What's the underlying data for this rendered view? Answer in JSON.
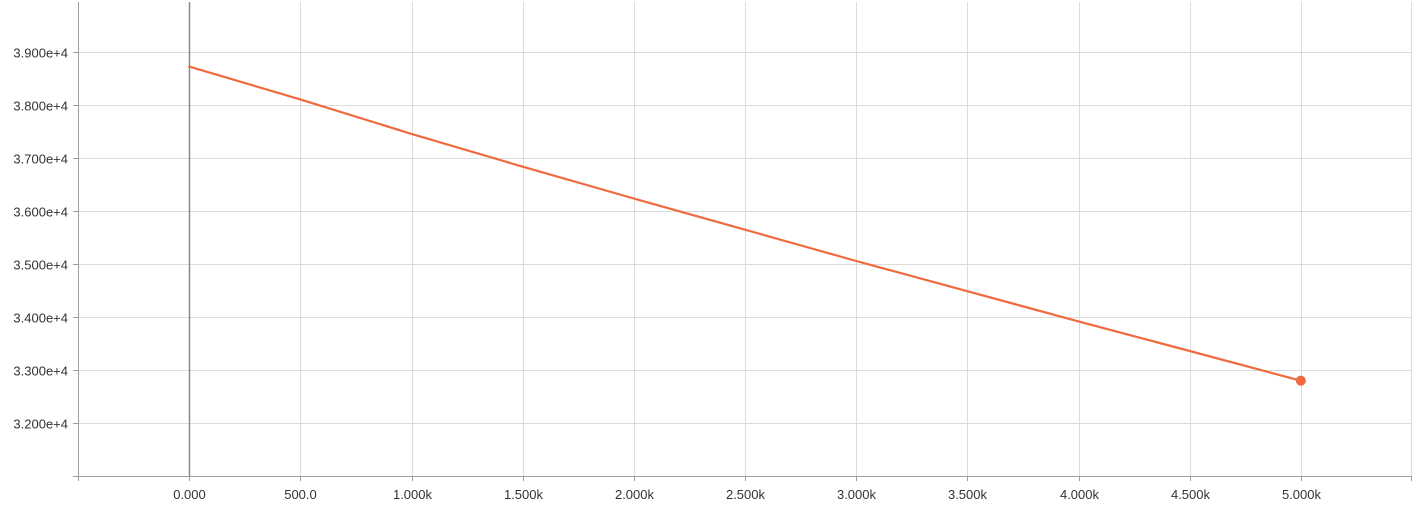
{
  "chart_data": {
    "type": "line",
    "title": "",
    "xlabel": "",
    "ylabel": "",
    "xlim": [
      -500,
      5500
    ],
    "ylim": [
      31000,
      39950
    ],
    "grid": true,
    "legend": "none",
    "x_ticks": [
      {
        "value": 0,
        "label": "0.000"
      },
      {
        "value": 500,
        "label": "500.0"
      },
      {
        "value": 1000,
        "label": "1.000k"
      },
      {
        "value": 1500,
        "label": "1.500k"
      },
      {
        "value": 2000,
        "label": "2.000k"
      },
      {
        "value": 2500,
        "label": "2.500k"
      },
      {
        "value": 3000,
        "label": "3.000k"
      },
      {
        "value": 3500,
        "label": "3.500k"
      },
      {
        "value": 4000,
        "label": "4.000k"
      },
      {
        "value": 4500,
        "label": "4.500k"
      },
      {
        "value": 5000,
        "label": "5.000k"
      }
    ],
    "y_ticks": [
      {
        "value": 32000,
        "label": "3.200e+4"
      },
      {
        "value": 33000,
        "label": "3.300e+4"
      },
      {
        "value": 34000,
        "label": "3.400e+4"
      },
      {
        "value": 35000,
        "label": "3.500e+4"
      },
      {
        "value": 36000,
        "label": "3.600e+4"
      },
      {
        "value": 37000,
        "label": "3.700e+4"
      },
      {
        "value": 38000,
        "label": "3.800e+4"
      },
      {
        "value": 39000,
        "label": "3.900e+4"
      }
    ],
    "series": [
      {
        "color": "#f06a3f",
        "x": [
          0,
          500,
          1000,
          1500,
          2000,
          2500,
          3000,
          3500,
          4000,
          4500,
          5000
        ],
        "y": [
          38730,
          38110,
          37460,
          36840,
          36240,
          35650,
          35060,
          34490,
          33920,
          33360,
          32800
        ]
      }
    ]
  }
}
